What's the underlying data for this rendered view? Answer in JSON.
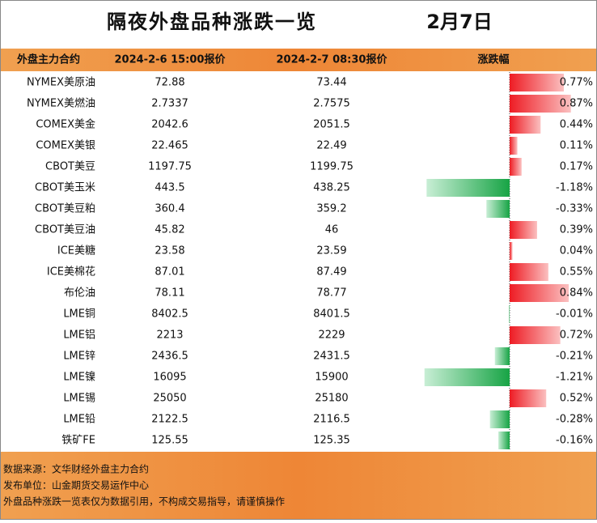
{
  "header": {
    "title": "隔夜外盘品种涨跌一览",
    "date": "2月7日"
  },
  "table": {
    "columns": [
      "外盘主力合约",
      "2024-2-6 15:00报价",
      "2024-2-7 08:30报价",
      "涨跌幅"
    ],
    "rows": [
      [
        "NYMEX美原油",
        "72.88",
        "73.44",
        {
          "value": 0.77,
          "label": "0.77%"
        }
      ],
      [
        "NYMEX美燃油",
        "2.7337",
        "2.7575",
        {
          "value": 0.87,
          "label": "0.87%"
        }
      ],
      [
        "COMEX美金",
        "2042.6",
        "2051.5",
        {
          "value": 0.44,
          "label": "0.44%"
        }
      ],
      [
        "COMEX美银",
        "22.465",
        "22.49",
        {
          "value": 0.11,
          "label": "0.11%"
        }
      ],
      [
        "CBOT美豆",
        "1197.75",
        "1199.75",
        {
          "value": 0.17,
          "label": "0.17%"
        }
      ],
      [
        "CBOT美玉米",
        "443.5",
        "438.25",
        {
          "value": -1.18,
          "label": "-1.18%"
        }
      ],
      [
        "CBOT美豆粕",
        "360.4",
        "359.2",
        {
          "value": -0.33,
          "label": "-0.33%"
        }
      ],
      [
        "CBOT美豆油",
        "45.82",
        "46",
        {
          "value": 0.39,
          "label": "0.39%"
        }
      ],
      [
        "ICE美糖",
        "23.58",
        "23.59",
        {
          "value": 0.04,
          "label": "0.04%"
        }
      ],
      [
        "ICE美棉花",
        "87.01",
        "87.49",
        {
          "value": 0.55,
          "label": "0.55%"
        }
      ],
      [
        "布伦油",
        "78.11",
        "78.77",
        {
          "value": 0.84,
          "label": "0.84%"
        }
      ],
      [
        "LME铜",
        "8402.5",
        "8401.5",
        {
          "value": -0.01,
          "label": "-0.01%"
        }
      ],
      [
        "LME铝",
        "2213",
        "2229",
        {
          "value": 0.72,
          "label": "0.72%"
        }
      ],
      [
        "LME锌",
        "2436.5",
        "2431.5",
        {
          "value": -0.21,
          "label": "-0.21%"
        }
      ],
      [
        "LME镍",
        "16095",
        "15900",
        {
          "value": -1.21,
          "label": "-1.21%"
        }
      ],
      [
        "LME锡",
        "25050",
        "25180",
        {
          "value": 0.52,
          "label": "0.52%"
        }
      ],
      [
        "LME铅",
        "2122.5",
        "2116.5",
        {
          "value": -0.28,
          "label": "-0.28%"
        }
      ],
      [
        "铁矿FE",
        "125.55",
        "125.35",
        {
          "value": -0.16,
          "label": "-0.16%"
        }
      ]
    ]
  },
  "footer": [
    "数据来源：文华财经外盘主力合约",
    "发布单位：山金期货交易运作中心",
    "外盘品种涨跌一览表仅为数据引用，不构成交易指导，请谨慎操作"
  ]
}
